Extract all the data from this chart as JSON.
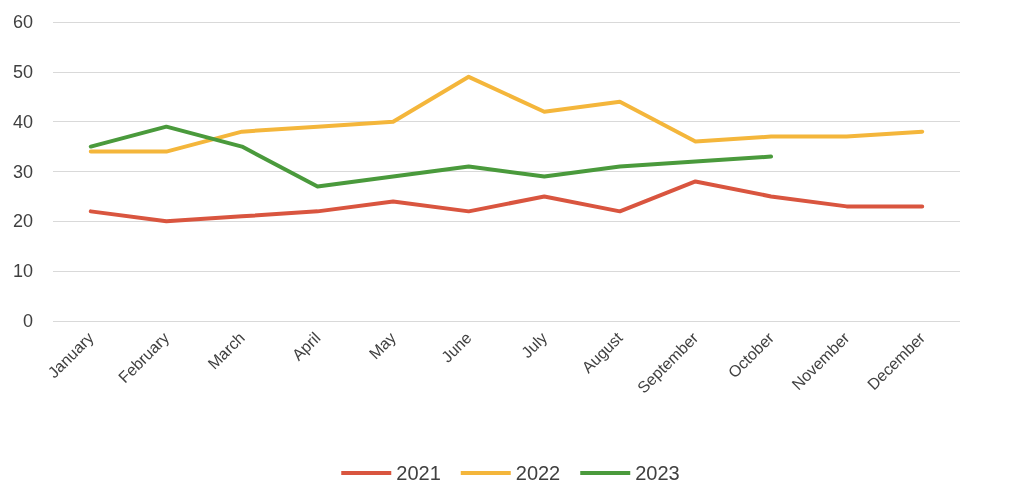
{
  "chart_data": {
    "type": "line",
    "categories": [
      "January",
      "February",
      "March",
      "April",
      "May",
      "June",
      "July",
      "August",
      "September",
      "October",
      "November",
      "December"
    ],
    "series": [
      {
        "name": "2021",
        "color": "#d9553f",
        "values": [
          22,
          20,
          21,
          22,
          24,
          22,
          25,
          22,
          28,
          25,
          23,
          23
        ]
      },
      {
        "name": "2022",
        "color": "#f4b63b",
        "values": [
          34,
          34,
          38,
          39,
          40,
          49,
          42,
          44,
          36,
          37,
          37,
          38
        ]
      },
      {
        "name": "2023",
        "color": "#4a9a3c",
        "values": [
          35,
          39,
          35,
          27,
          29,
          31,
          29,
          31,
          32,
          33,
          null,
          null
        ]
      }
    ],
    "ylim": [
      0,
      60
    ],
    "yticks": [
      0,
      10,
      20,
      30,
      40,
      50,
      60
    ],
    "grid": "y",
    "legend": "bottom",
    "marker": "none",
    "line_style": "solid"
  }
}
